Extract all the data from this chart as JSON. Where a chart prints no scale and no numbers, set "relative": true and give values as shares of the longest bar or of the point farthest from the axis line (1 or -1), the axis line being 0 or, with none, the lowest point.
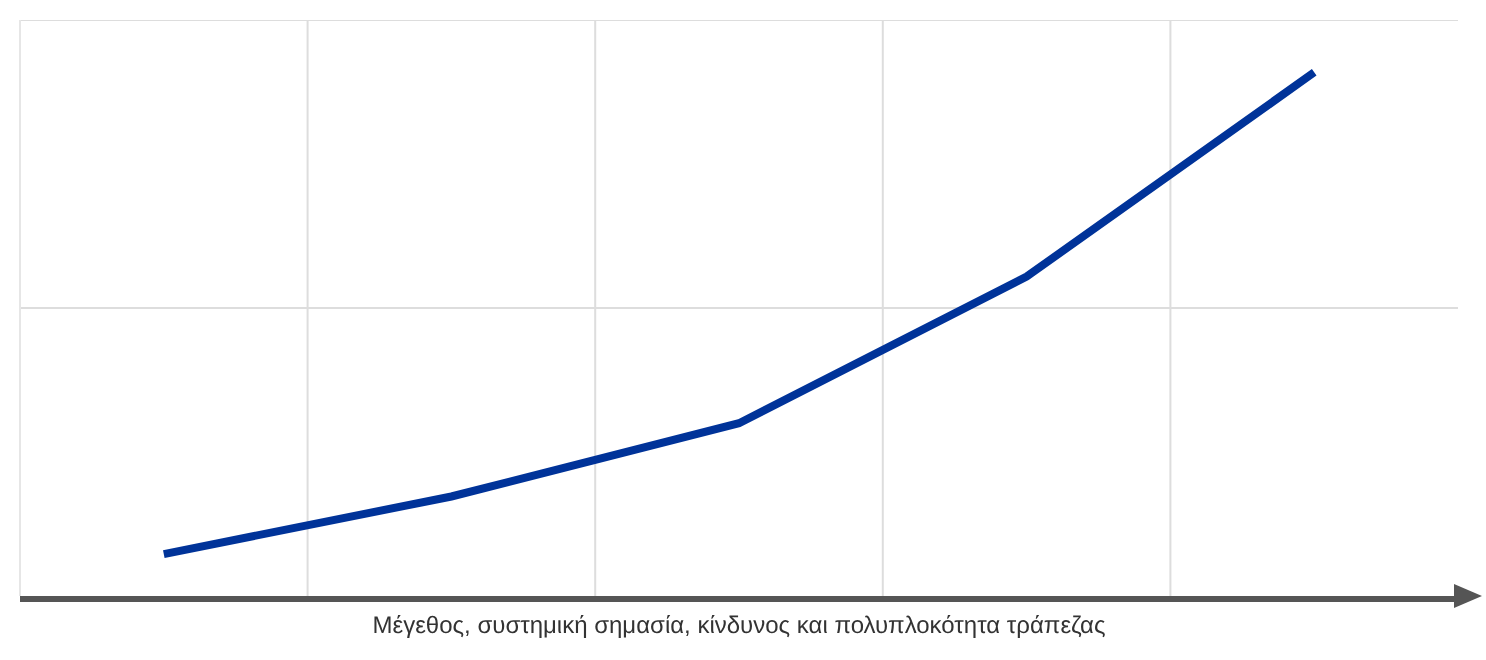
{
  "chart_data": {
    "type": "line",
    "relative": true,
    "xlabel": "Μέγεθος, συστημική σημασία, κίνδυνος και πολυπλοκότητα τράπεζας",
    "categories": [
      null,
      null,
      null,
      null,
      null
    ],
    "series": [
      {
        "color": "#003399",
        "values": [
          0.08,
          0.19,
          0.33,
          0.61,
          1
        ]
      }
    ],
    "grid": true,
    "marker": "none",
    "line_style": "solid"
  }
}
